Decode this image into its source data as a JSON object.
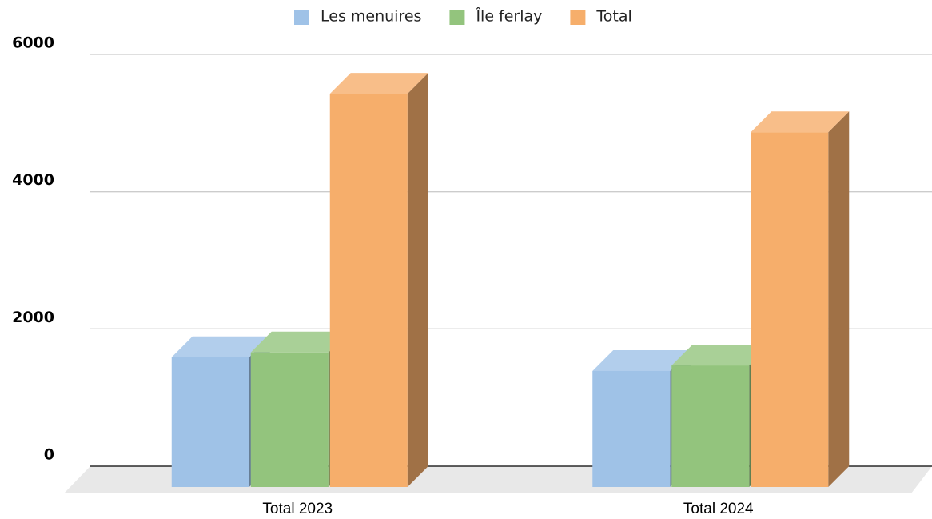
{
  "chart_data": {
    "type": "bar3d",
    "categories": [
      "Total 2023",
      "Total 2024"
    ],
    "series": [
      {
        "name": "Les menuires",
        "color": "#9fc2e7",
        "values": [
          1890,
          1690
        ]
      },
      {
        "name": "Île ferlay",
        "color": "#93c47d",
        "values": [
          1960,
          1770
        ]
      },
      {
        "name": "Total",
        "color": "#f6ae6b",
        "values": [
          5730,
          5170
        ]
      }
    ],
    "ylim": [
      0,
      6000
    ],
    "yticks": [
      0,
      2000,
      4000,
      6000
    ],
    "grid": true,
    "legend": "top"
  }
}
